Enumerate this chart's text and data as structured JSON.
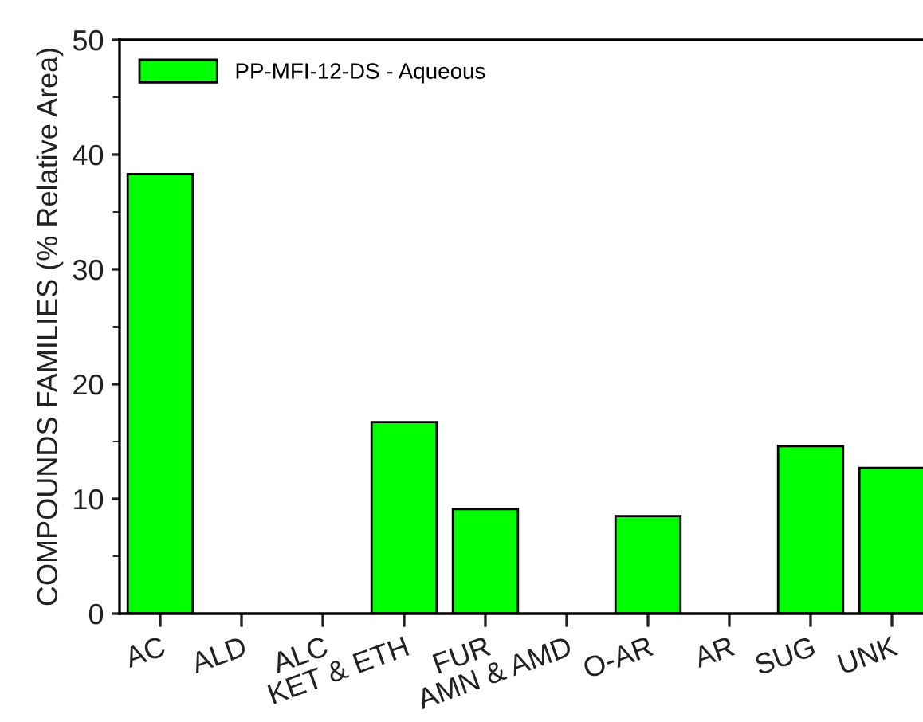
{
  "chart_data": {
    "type": "bar",
    "ylabel": "COMPOUNDS FAMILIES (% Relative Area)",
    "categories": [
      "AC",
      "ALD",
      "ALC",
      "KET & ETH",
      "FUR",
      "AMN & AMD",
      "O-AR",
      "AR",
      "SUG",
      "UNK"
    ],
    "series": [
      {
        "name": "PP-MFI-12-DS - Aqueous",
        "color": "#00ff00",
        "values": [
          38.3,
          0,
          0,
          16.7,
          9.1,
          0,
          8.5,
          0,
          14.6,
          12.7
        ]
      }
    ],
    "ylim": [
      0,
      50
    ],
    "yticks": [
      0,
      10,
      20,
      30,
      40,
      50
    ],
    "grid": false,
    "legend": "top left"
  }
}
